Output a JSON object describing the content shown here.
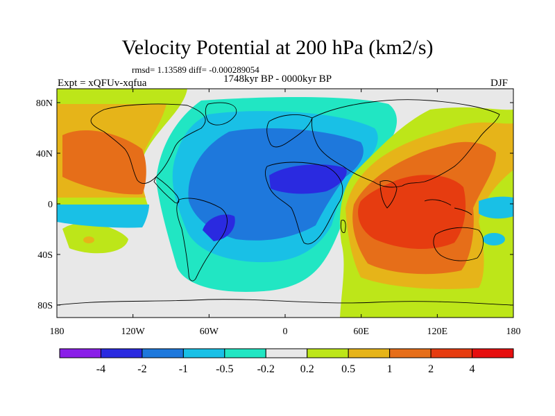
{
  "title": "Velocity Potential at 200 hPa (km2/s)",
  "stats": "rmsd= 1.13589 diff= -0.000289054",
  "experiment": "Expt = xQFUv-xqfua",
  "period": "1748kyr BP - 0000kyr BP",
  "season": "DJF",
  "x_tick_labels": [
    "180",
    "120W",
    "60W",
    "0",
    "60E",
    "120E",
    "180"
  ],
  "y_tick_labels": [
    "80N",
    "40N",
    "0",
    "40S",
    "80S"
  ],
  "colorbar": {
    "colors": [
      "#8a1ee8",
      "#2a2ae0",
      "#1e78dc",
      "#19c0e6",
      "#21e6c3",
      "#e8e8e8",
      "#bde619",
      "#e6b419",
      "#e66e19",
      "#e63c10",
      "#e60f0f"
    ],
    "labels": [
      "-4",
      "-2",
      "-1",
      "-0.5",
      "-0.2",
      "0.2",
      "0.5",
      "1",
      "2",
      "4"
    ]
  }
}
